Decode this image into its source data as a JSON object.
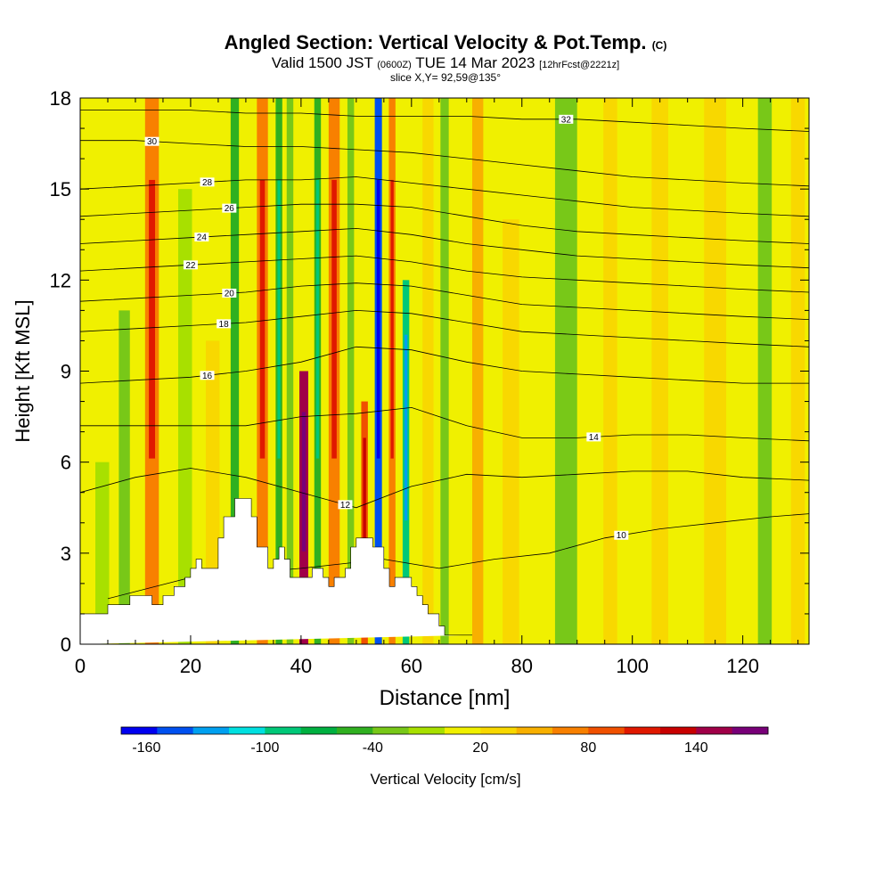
{
  "header": {
    "title": "Angled Section: Vertical Velocity & Pot.Temp.",
    "title_mark": "(C)",
    "valid_prefix": "Valid 1500 JST",
    "valid_utc": "(0600Z)",
    "valid_date": "TUE 14 Mar 2023",
    "forecast": "[12hrFcst@2221z]",
    "slice": "slice X,Y= 92,59@135°"
  },
  "colorbar": {
    "label": "Vertical Velocity [cm/s]",
    "ticks": [
      "-160",
      "-100",
      "-40",
      "20",
      "80",
      "140"
    ],
    "colors": [
      "#0000f0",
      "#0050f0",
      "#00a0f0",
      "#00e0e0",
      "#00c878",
      "#00b040",
      "#30b020",
      "#78c818",
      "#a8e000",
      "#f0f000",
      "#f8d800",
      "#f8b000",
      "#f88000",
      "#f05000",
      "#e01800",
      "#c80000",
      "#a00048",
      "#780078"
    ]
  },
  "chart_data": {
    "type": "heatmap",
    "title": "Angled Section: Vertical Velocity & Pot.Temp.",
    "xlabel": "Distance [nm]",
    "ylabel": "Height [Kft MSL]",
    "xlim": [
      0,
      132
    ],
    "ylim": [
      0,
      18
    ],
    "xticks": [
      0,
      20,
      40,
      60,
      80,
      100,
      120
    ],
    "yticks": [
      0,
      3,
      6,
      9,
      12,
      15,
      18
    ],
    "colorbar_label": "Vertical Velocity [cm/s]",
    "background_velocity": 0,
    "velocity_columns": [
      {
        "x": 4,
        "width": 2.5,
        "w": -20,
        "ymax": 6
      },
      {
        "x": 8,
        "width": 2,
        "w": -30,
        "ymax": 11
      },
      {
        "x": 13,
        "width": 2.5,
        "w": 60,
        "ymax": 18
      },
      {
        "x": 19,
        "width": 2.5,
        "w": -20,
        "ymax": 15
      },
      {
        "x": 24,
        "width": 2.5,
        "w": 30,
        "ymax": 10
      },
      {
        "x": 28,
        "width": 1.5,
        "w": -50,
        "ymax": 18
      },
      {
        "x": 33,
        "width": 2,
        "w": 60,
        "ymax": 18
      },
      {
        "x": 36,
        "width": 1.2,
        "w": -60,
        "ymax": 18
      },
      {
        "x": 38,
        "width": 1.2,
        "w": -30,
        "ymax": 18
      },
      {
        "x": 40.5,
        "width": 1.6,
        "w": 140,
        "ymax": 9
      },
      {
        "x": 43,
        "width": 1.2,
        "w": -60,
        "ymax": 18
      },
      {
        "x": 46,
        "width": 2,
        "w": 60,
        "ymax": 18
      },
      {
        "x": 49,
        "width": 1.2,
        "w": -40,
        "ymax": 18
      },
      {
        "x": 51.5,
        "width": 1.2,
        "w": 90,
        "ymax": 8
      },
      {
        "x": 54,
        "width": 1.3,
        "w": -160,
        "ymax": 18
      },
      {
        "x": 56.5,
        "width": 1.2,
        "w": 60,
        "ymax": 18
      },
      {
        "x": 59,
        "width": 1.2,
        "w": -100,
        "ymax": 12
      },
      {
        "x": 63,
        "width": 2,
        "w": 30,
        "ymax": 18
      },
      {
        "x": 66,
        "width": 1.5,
        "w": -40,
        "ymax": 18
      },
      {
        "x": 72,
        "width": 2,
        "w": 50,
        "ymax": 18
      },
      {
        "x": 78,
        "width": 3,
        "w": 20,
        "ymax": 14
      },
      {
        "x": 88,
        "width": 4,
        "w": -30,
        "ymax": 18
      },
      {
        "x": 96,
        "width": 2.5,
        "w": 30,
        "ymax": 18
      },
      {
        "x": 105,
        "width": 3,
        "w": 20,
        "ymax": 18
      },
      {
        "x": 115,
        "width": 4,
        "w": 30,
        "ymax": 18
      },
      {
        "x": 124,
        "width": 2.5,
        "w": -30,
        "ymax": 18
      },
      {
        "x": 130,
        "width": 2.5,
        "w": 30,
        "ymax": 18
      }
    ],
    "terrain": {
      "x": [
        0,
        5,
        5,
        9,
        9,
        13,
        13,
        15,
        15,
        17,
        17,
        19,
        19,
        20,
        20,
        21,
        21,
        22,
        22,
        25,
        25,
        26,
        26,
        28,
        28,
        31,
        31,
        32,
        32,
        34,
        34,
        35,
        35,
        36,
        36,
        37,
        37,
        38,
        38,
        42,
        42,
        44,
        44,
        45,
        45,
        46,
        46,
        48,
        48,
        49,
        49,
        50,
        50,
        53,
        53,
        55,
        55,
        56,
        56,
        57,
        57,
        60,
        60,
        61,
        61,
        62,
        62,
        63,
        63,
        65,
        65,
        66,
        66,
        68,
        68,
        71,
        71,
        132
      ],
      "y": [
        1.0,
        1.0,
        1.3,
        1.3,
        1.6,
        1.6,
        1.3,
        1.3,
        1.6,
        1.6,
        1.9,
        1.9,
        2.2,
        2.2,
        2.5,
        2.5,
        2.8,
        2.8,
        2.5,
        2.5,
        3.5,
        3.5,
        4.2,
        4.2,
        4.8,
        4.8,
        4.2,
        4.2,
        3.2,
        3.2,
        2.5,
        2.5,
        2.8,
        2.8,
        3.2,
        3.2,
        2.8,
        2.8,
        2.2,
        2.2,
        2.5,
        2.5,
        2.2,
        2.2,
        1.9,
        1.9,
        2.2,
        2.2,
        2.5,
        2.5,
        3.2,
        3.2,
        3.5,
        3.5,
        3.2,
        3.2,
        2.5,
        2.5,
        1.9,
        1.9,
        2.2,
        2.2,
        1.9,
        1.9,
        1.6,
        1.6,
        1.3,
        1.3,
        1.0,
        1.0,
        0.6,
        0.6,
        0.3,
        0.3,
        0.3,
        0.3
      ]
    },
    "isentropes": [
      {
        "name": "10",
        "x": [
          5,
          20,
          40,
          55,
          65,
          75,
          85,
          95,
          105,
          115,
          125,
          132
        ],
        "y": [
          1.5,
          2.2,
          2.5,
          2.8,
          2.5,
          2.8,
          3.0,
          3.5,
          3.8,
          4.0,
          4.2,
          4.3
        ],
        "label_at": 98
      },
      {
        "name": "12",
        "x": [
          0,
          10,
          20,
          30,
          40,
          50,
          60,
          70,
          80,
          90,
          100,
          110,
          120,
          132
        ],
        "y": [
          5.0,
          5.5,
          5.8,
          5.5,
          5.0,
          4.5,
          5.2,
          5.6,
          5.5,
          5.6,
          5.7,
          5.7,
          5.5,
          5.4
        ],
        "label_at": 48
      },
      {
        "name": "14",
        "x": [
          0,
          10,
          20,
          30,
          40,
          50,
          60,
          70,
          80,
          90,
          100,
          110,
          120,
          132
        ],
        "y": [
          7.2,
          7.2,
          7.2,
          7.2,
          7.5,
          7.6,
          7.8,
          7.2,
          6.8,
          6.8,
          6.9,
          6.9,
          6.8,
          6.7
        ],
        "label_at": 93
      },
      {
        "name": "16",
        "x": [
          0,
          10,
          20,
          30,
          40,
          50,
          60,
          70,
          80,
          90,
          100,
          110,
          120,
          132
        ],
        "y": [
          8.6,
          8.7,
          8.8,
          9.0,
          9.3,
          9.8,
          9.7,
          9.3,
          9.0,
          8.9,
          8.8,
          8.7,
          8.6,
          8.6
        ],
        "label_at": 23
      },
      {
        "name": "18",
        "x": [
          0,
          10,
          20,
          30,
          40,
          50,
          60,
          70,
          80,
          90,
          100,
          110,
          120,
          132
        ],
        "y": [
          10.3,
          10.4,
          10.5,
          10.6,
          10.8,
          11.0,
          10.9,
          10.6,
          10.3,
          10.2,
          10.1,
          10.0,
          9.9,
          9.8
        ],
        "label_at": 26
      },
      {
        "name": "20",
        "x": [
          0,
          10,
          20,
          30,
          40,
          50,
          60,
          70,
          80,
          90,
          100,
          110,
          120,
          132
        ],
        "y": [
          11.3,
          11.4,
          11.5,
          11.6,
          11.8,
          11.9,
          11.8,
          11.5,
          11.2,
          11.1,
          11.0,
          10.9,
          10.8,
          10.7
        ],
        "label_at": 27
      },
      {
        "name": "22",
        "x": [
          0,
          10,
          20,
          30,
          40,
          50,
          60,
          70,
          80,
          90,
          100,
          110,
          120,
          132
        ],
        "y": [
          12.3,
          12.4,
          12.5,
          12.6,
          12.7,
          12.8,
          12.6,
          12.3,
          12.1,
          12.0,
          11.9,
          11.8,
          11.7,
          11.6
        ],
        "label_at": 20
      },
      {
        "name": "24",
        "x": [
          0,
          10,
          20,
          30,
          40,
          50,
          60,
          70,
          80,
          90,
          100,
          110,
          120,
          132
        ],
        "y": [
          13.2,
          13.3,
          13.4,
          13.5,
          13.6,
          13.7,
          13.5,
          13.2,
          13.0,
          12.8,
          12.7,
          12.6,
          12.5,
          12.4
        ],
        "label_at": 22
      },
      {
        "name": "26",
        "x": [
          0,
          10,
          20,
          30,
          40,
          50,
          60,
          70,
          80,
          90,
          100,
          110,
          120,
          132
        ],
        "y": [
          14.1,
          14.2,
          14.3,
          14.4,
          14.5,
          14.5,
          14.4,
          14.1,
          13.8,
          13.6,
          13.5,
          13.4,
          13.3,
          13.2
        ],
        "label_at": 27
      },
      {
        "name": "28",
        "x": [
          0,
          10,
          20,
          30,
          40,
          50,
          60,
          70,
          80,
          90,
          100,
          110,
          120,
          132
        ],
        "y": [
          15.0,
          15.1,
          15.2,
          15.3,
          15.3,
          15.4,
          15.2,
          15.0,
          14.8,
          14.6,
          14.4,
          14.3,
          14.2,
          14.1
        ],
        "label_at": 23
      },
      {
        "name": "30",
        "x": [
          0,
          10,
          20,
          30,
          40,
          50,
          60,
          70,
          80,
          90,
          100,
          110,
          120,
          132
        ],
        "y": [
          16.6,
          16.6,
          16.5,
          16.4,
          16.4,
          16.3,
          16.2,
          16.0,
          15.8,
          15.6,
          15.4,
          15.3,
          15.2,
          15.1
        ],
        "label_at": 13
      },
      {
        "name": "32",
        "x": [
          0,
          10,
          20,
          30,
          40,
          50,
          60,
          70,
          80,
          90,
          100,
          110,
          120,
          132
        ],
        "y": [
          17.6,
          17.6,
          17.6,
          17.5,
          17.5,
          17.4,
          17.4,
          17.4,
          17.3,
          17.3,
          17.2,
          17.1,
          17.0,
          16.9
        ],
        "label_at": 88
      }
    ]
  }
}
